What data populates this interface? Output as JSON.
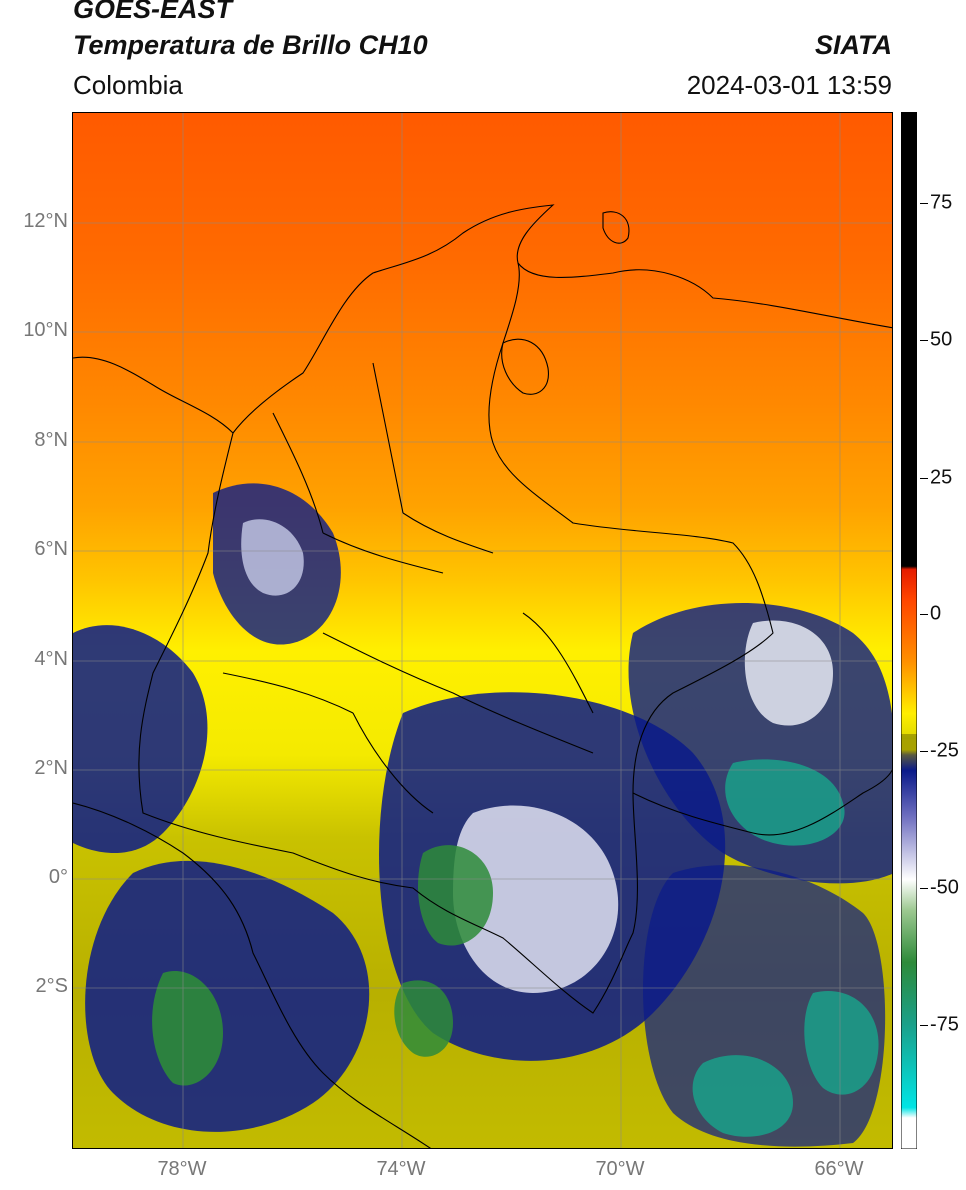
{
  "header": {
    "title_line1": "GOES-EAST",
    "title_line2": "Temperatura de Brillo CH10",
    "agency": "SIATA",
    "region": "Colombia",
    "timestamp": "2024-03-01 13:59"
  },
  "axes": {
    "lat_labels": [
      "12°N",
      "10°N",
      "8°N",
      "6°N",
      "4°N",
      "2°N",
      "0°",
      "2°S"
    ],
    "lon_labels": [
      "78°W",
      "74°W",
      "70°W",
      "66°W"
    ]
  },
  "colorbar": {
    "labels": [
      "75",
      "50",
      "25",
      "0",
      "-25",
      "-50",
      "-75"
    ],
    "range": [
      -95,
      90
    ],
    "colors": {
      "warm": "#000000",
      "hot": "#e51b00",
      "orange": "#ff8c00",
      "yellow": "#ffee00",
      "olive": "#a8a200",
      "navy": "#0a1a8a",
      "white": "#ffffff",
      "green": "#2e8b3a",
      "teal": "#1aa08a",
      "cyan": "#00e5e5"
    }
  }
}
